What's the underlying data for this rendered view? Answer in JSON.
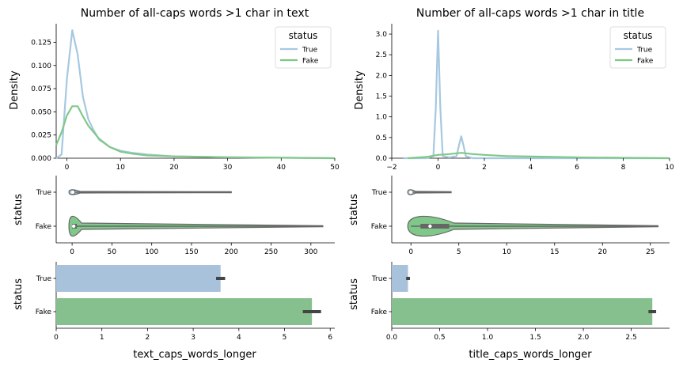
{
  "colors": {
    "true": "#a6c8e0",
    "fake": "#80c88a",
    "bar_true": "#a9c2dc",
    "bar_fake": "#86c08e",
    "violin_edge": "#666666",
    "err": "#444444"
  },
  "chart_data": [
    {
      "id": "kde_text",
      "type": "line",
      "title": "Number of all-caps words >1 char in text",
      "xlabel": "",
      "ylabel": "Density",
      "xlim": [
        -2,
        50
      ],
      "ylim": [
        0,
        0.145
      ],
      "xticks": [
        "0",
        "10",
        "20",
        "30",
        "40",
        "50"
      ],
      "yticks": [
        "0.000",
        "0.025",
        "0.050",
        "0.075",
        "0.100",
        "0.125"
      ],
      "legend": {
        "title": "status",
        "placement": "top-right",
        "entries": [
          "True",
          "Fake"
        ]
      },
      "series": [
        {
          "name": "True",
          "x": [
            -2,
            -1,
            0,
            1,
            2,
            3,
            4,
            5,
            6,
            8,
            10,
            12,
            15,
            20,
            30,
            50
          ],
          "y": [
            0.0,
            0.004,
            0.085,
            0.138,
            0.112,
            0.066,
            0.042,
            0.03,
            0.02,
            0.012,
            0.008,
            0.006,
            0.004,
            0.002,
            0.001,
            0.0
          ]
        },
        {
          "name": "Fake",
          "x": [
            -2,
            -1,
            0,
            1,
            2,
            3,
            4,
            5,
            6,
            8,
            10,
            12,
            15,
            20,
            30,
            50
          ],
          "y": [
            0.014,
            0.028,
            0.046,
            0.056,
            0.056,
            0.045,
            0.035,
            0.028,
            0.021,
            0.012,
            0.007,
            0.005,
            0.003,
            0.002,
            0.001,
            0.0
          ]
        }
      ]
    },
    {
      "id": "kde_title",
      "type": "line",
      "title": "Number of all-caps words >1 char in title",
      "xlabel": "",
      "ylabel": "Density",
      "xlim": [
        -2,
        10
      ],
      "ylim": [
        0,
        3.25
      ],
      "xticks": [
        "−2",
        "0",
        "2",
        "4",
        "6",
        "8",
        "10"
      ],
      "yticks": [
        "0.0",
        "0.5",
        "1.0",
        "1.5",
        "2.0",
        "2.5",
        "3.0"
      ],
      "legend": {
        "title": "status",
        "placement": "top-right",
        "entries": [
          "True",
          "Fake"
        ]
      },
      "series": [
        {
          "name": "True",
          "x": [
            -1.5,
            -0.5,
            -0.2,
            -0.1,
            0.0,
            0.1,
            0.2,
            0.5,
            0.8,
            0.9,
            1.0,
            1.1,
            1.2,
            1.5,
            3,
            10
          ],
          "y": [
            0.0,
            0.0,
            0.05,
            1.2,
            3.08,
            1.2,
            0.05,
            0.02,
            0.05,
            0.3,
            0.53,
            0.3,
            0.05,
            0.0,
            0.0,
            0.0
          ]
        },
        {
          "name": "Fake",
          "x": [
            -1.3,
            -0.5,
            0,
            0.5,
            1,
            1.5,
            2,
            3,
            4,
            5,
            6,
            8,
            10
          ],
          "y": [
            0.0,
            0.03,
            0.08,
            0.1,
            0.13,
            0.1,
            0.08,
            0.05,
            0.04,
            0.03,
            0.02,
            0.01,
            0.0
          ]
        }
      ]
    },
    {
      "id": "violin_text",
      "type": "violin",
      "xlabel": "",
      "ylabel": "status",
      "xlim": [
        -20,
        330
      ],
      "xticks": [
        "0",
        "50",
        "100",
        "150",
        "200",
        "250",
        "300"
      ],
      "categories": [
        "True",
        "Fake"
      ],
      "series": [
        {
          "name": "True",
          "min": 0,
          "q1": 0,
          "median": 1,
          "q3": 4,
          "max": 200
        },
        {
          "name": "Fake",
          "min": 0,
          "q1": 0,
          "median": 2,
          "q3": 6,
          "max": 315
        }
      ]
    },
    {
      "id": "violin_title",
      "type": "violin",
      "xlabel": "",
      "ylabel": "status",
      "xlim": [
        -2,
        27
      ],
      "xticks": [
        "0",
        "5",
        "10",
        "15",
        "20",
        "25"
      ],
      "categories": [
        "True",
        "Fake"
      ],
      "series": [
        {
          "name": "True",
          "min": 0,
          "q1": 0,
          "median": 0,
          "q3": 0,
          "max": 4.2
        },
        {
          "name": "Fake",
          "min": 0,
          "q1": 1,
          "median": 2,
          "q3": 4,
          "max": 25.8
        }
      ]
    },
    {
      "id": "bar_text",
      "type": "bar",
      "orientation": "horizontal",
      "xlabel": "text_caps_words_longer",
      "ylabel": "status",
      "xlim": [
        0,
        6.1
      ],
      "xticks": [
        "0",
        "1",
        "2",
        "3",
        "4",
        "5",
        "6"
      ],
      "categories": [
        "True",
        "Fake"
      ],
      "values": [
        3.6,
        5.6
      ],
      "errors": [
        [
          3.5,
          3.7
        ],
        [
          5.4,
          5.8
        ]
      ]
    },
    {
      "id": "bar_title",
      "type": "bar",
      "orientation": "horizontal",
      "xlabel": "title_caps_words_longer",
      "ylabel": "status",
      "xlim": [
        0,
        2.9
      ],
      "xticks": [
        "0.0",
        "0.5",
        "1.0",
        "1.5",
        "2.0",
        "2.5"
      ],
      "categories": [
        "True",
        "Fake"
      ],
      "values": [
        0.17,
        2.72
      ],
      "errors": [
        [
          0.15,
          0.19
        ],
        [
          2.68,
          2.76
        ]
      ]
    }
  ]
}
